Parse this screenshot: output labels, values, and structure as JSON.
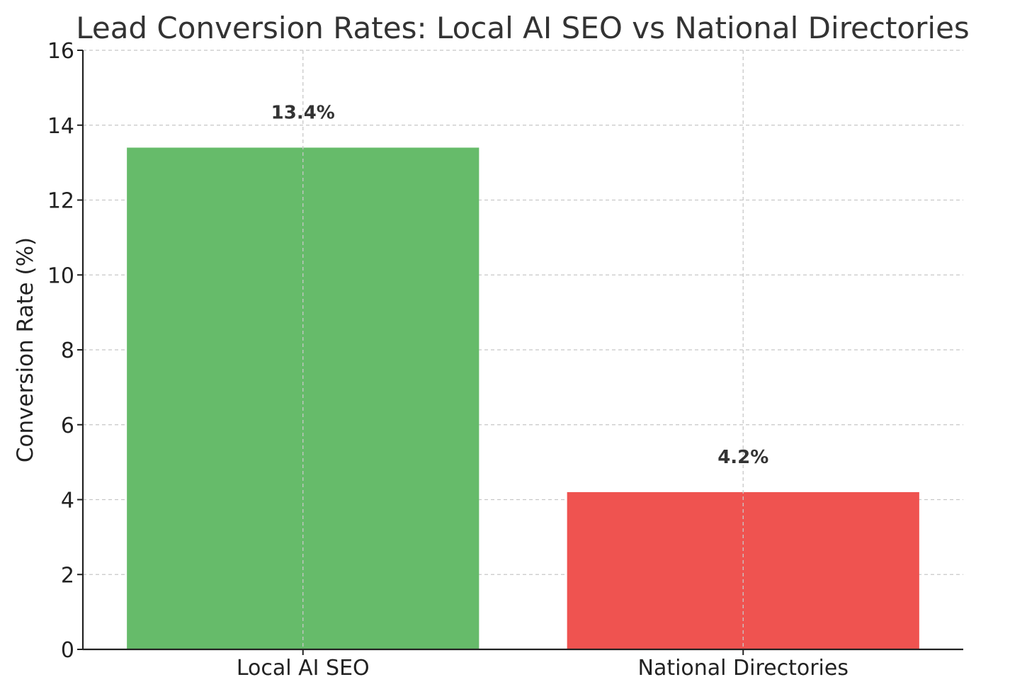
{
  "chart_data": {
    "type": "bar",
    "title": "Lead Conversion Rates: Local AI SEO vs National Directories",
    "xlabel": "",
    "ylabel": "Conversion Rate (%)",
    "categories": [
      "Local AI SEO",
      "National Directories"
    ],
    "values": [
      13.4,
      4.2
    ],
    "data_labels": [
      "13.4%",
      "4.2%"
    ],
    "colors": [
      "#66BB6A",
      "#EF5350"
    ],
    "ylim": [
      0,
      16
    ],
    "yticks": [
      0,
      2,
      4,
      6,
      8,
      10,
      12,
      14,
      16
    ],
    "grid": true
  }
}
